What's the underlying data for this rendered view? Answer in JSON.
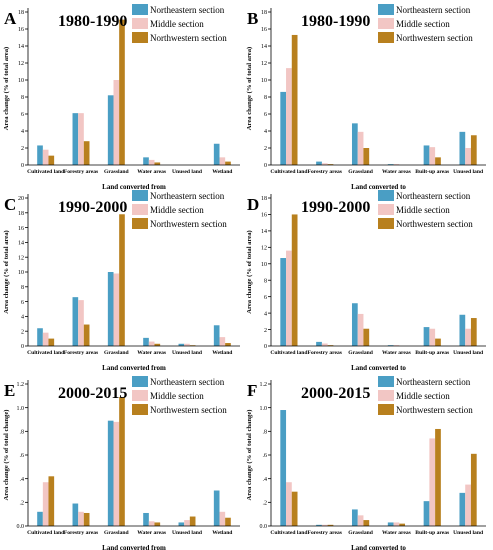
{
  "colors": {
    "northeastern": "#4a9ec4",
    "middle": "#f2c6c4",
    "northwestern": "#b8801e"
  },
  "chart_data": [
    {
      "panel": "A",
      "type": "bar",
      "title": "1980-1990",
      "xlabel": "Land converted from",
      "ylabel": "Area change (% of total area)",
      "categories": [
        "Cultivated land",
        "Forestry areas",
        "Grassland",
        "Water areas",
        "Unused land",
        "Wetland"
      ],
      "ylim": [
        0,
        18
      ],
      "yticks": [
        0,
        2,
        4,
        6,
        8,
        10,
        12,
        14,
        16,
        18
      ],
      "ytick_labels": [
        "0",
        "2",
        "4",
        "6",
        "8",
        "10",
        "12",
        "14",
        "16",
        "18"
      ],
      "series": [
        {
          "name": "Northeastern section",
          "values": [
            2.3,
            6.1,
            8.2,
            0.9,
            0.0,
            2.5
          ]
        },
        {
          "name": "Middle section",
          "values": [
            1.8,
            6.1,
            10.0,
            0.6,
            0.0,
            0.9
          ]
        },
        {
          "name": "Northwestern section",
          "values": [
            1.1,
            2.8,
            17.1,
            0.3,
            0.0,
            0.4
          ]
        }
      ]
    },
    {
      "panel": "B",
      "type": "bar",
      "title": "1980-1990",
      "xlabel": "Land converted to",
      "ylabel": "Area change (% of total area)",
      "categories": [
        "Cultivated land",
        "Forestry areas",
        "Grassland",
        "Water areas",
        "Built-up areas",
        "Unused land"
      ],
      "ylim": [
        0,
        18
      ],
      "yticks": [
        0,
        2,
        4,
        6,
        8,
        10,
        12,
        14,
        16,
        18
      ],
      "ytick_labels": [
        "0",
        "2",
        "4",
        "6",
        "8",
        "10",
        "12",
        "14",
        "16",
        "18"
      ],
      "series": [
        {
          "name": "Northeastern section",
          "values": [
            8.6,
            0.4,
            4.9,
            0.1,
            2.3,
            3.9
          ]
        },
        {
          "name": "Middle section",
          "values": [
            11.4,
            0.2,
            3.9,
            0.1,
            2.1,
            2.0
          ]
        },
        {
          "name": "Northwestern section",
          "values": [
            15.3,
            0.1,
            2.0,
            0.0,
            0.9,
            3.5
          ]
        }
      ]
    },
    {
      "panel": "C",
      "type": "bar",
      "title": "1990-2000",
      "xlabel": "Land converted from",
      "ylabel": "Area change (% of total area)",
      "categories": [
        "Cultivated land",
        "Forestry areas",
        "Grassland",
        "Water areas",
        "Unused land",
        "Wetland"
      ],
      "ylim": [
        0,
        20
      ],
      "yticks": [
        0,
        2,
        4,
        6,
        8,
        10,
        12,
        14,
        16,
        18,
        20
      ],
      "ytick_labels": [
        "0",
        "2",
        "4",
        "6",
        "8",
        "10",
        "12",
        "14",
        "16",
        "18",
        "20"
      ],
      "series": [
        {
          "name": "Northeastern section",
          "values": [
            2.4,
            6.6,
            10.0,
            1.1,
            0.3,
            2.8
          ]
        },
        {
          "name": "Middle section",
          "values": [
            1.8,
            6.2,
            9.8,
            0.6,
            0.3,
            1.2
          ]
        },
        {
          "name": "Northwestern section",
          "values": [
            1.0,
            2.9,
            17.8,
            0.3,
            0.1,
            0.4
          ]
        }
      ]
    },
    {
      "panel": "D",
      "type": "bar",
      "title": "1990-2000",
      "xlabel": "Land converted to",
      "ylabel": "Area change (% of total area)",
      "categories": [
        "Cultivated land",
        "Forestry areas",
        "Grassland",
        "Water areas",
        "Built-up areas",
        "Unused land"
      ],
      "ylim": [
        0,
        18
      ],
      "yticks": [
        0,
        2,
        4,
        6,
        8,
        10,
        12,
        14,
        16,
        18
      ],
      "ytick_labels": [
        "0",
        "2",
        "4",
        "6",
        "8",
        "10",
        "12",
        "14",
        "16",
        "18"
      ],
      "series": [
        {
          "name": "Northeastern section",
          "values": [
            10.7,
            0.5,
            5.2,
            0.1,
            2.3,
            3.8
          ]
        },
        {
          "name": "Middle section",
          "values": [
            11.6,
            0.3,
            3.9,
            0.1,
            2.1,
            2.1
          ]
        },
        {
          "name": "Northwestern section",
          "values": [
            16.0,
            0.1,
            2.1,
            0.0,
            0.9,
            3.4
          ]
        }
      ]
    },
    {
      "panel": "E",
      "type": "bar",
      "title": "2000-2015",
      "xlabel": "Land converted from",
      "ylabel": "Area change (% of total change)",
      "categories": [
        "Cultivated land",
        "Forestry areas",
        "Grassland",
        "Water areas",
        "Unused land",
        "Wetland"
      ],
      "ylim": [
        0,
        1.2
      ],
      "yticks": [
        0,
        0.2,
        0.4,
        0.6,
        0.8,
        1.0,
        1.2
      ],
      "ytick_labels": [
        "0.0",
        ".2",
        ".4",
        ".6",
        ".8",
        "1.0",
        "1.2"
      ],
      "series": [
        {
          "name": "Northeastern section",
          "values": [
            0.12,
            0.19,
            0.89,
            0.11,
            0.03,
            0.3
          ]
        },
        {
          "name": "Middle section",
          "values": [
            0.37,
            0.12,
            0.88,
            0.04,
            0.05,
            0.12
          ]
        },
        {
          "name": "Northwestern section",
          "values": [
            0.42,
            0.11,
            1.09,
            0.03,
            0.08,
            0.07
          ]
        }
      ]
    },
    {
      "panel": "F",
      "type": "bar",
      "title": "2000-2015",
      "xlabel": "Land converted to",
      "ylabel": "Area change (% of total change)",
      "categories": [
        "Cultivated land",
        "Forestry areas",
        "Grassland",
        "Water areas",
        "Built-up areas",
        "Unused land"
      ],
      "ylim": [
        0,
        1.2
      ],
      "yticks": [
        0,
        0.2,
        0.4,
        0.6,
        0.8,
        1.0,
        1.2
      ],
      "ytick_labels": [
        "0.0",
        ".2",
        ".4",
        ".6",
        ".8",
        "1.0",
        "1.2"
      ],
      "series": [
        {
          "name": "Northeastern section",
          "values": [
            0.98,
            0.01,
            0.14,
            0.03,
            0.21,
            0.28
          ]
        },
        {
          "name": "Middle section",
          "values": [
            0.37,
            0.01,
            0.09,
            0.03,
            0.74,
            0.35
          ]
        },
        {
          "name": "Northwestern section",
          "values": [
            0.29,
            0.01,
            0.05,
            0.02,
            0.82,
            0.61
          ]
        }
      ]
    }
  ]
}
